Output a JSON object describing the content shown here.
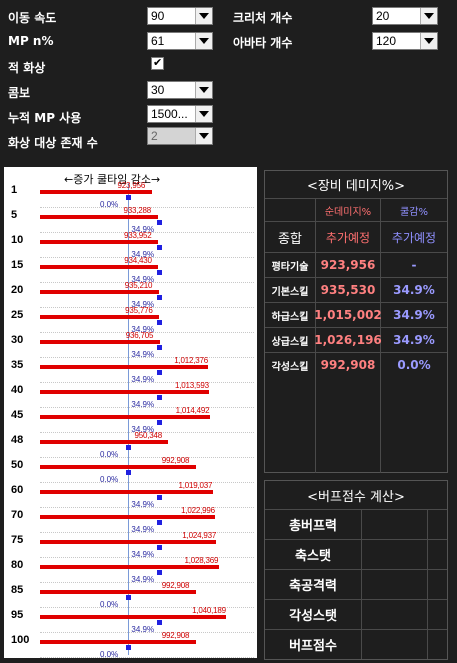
{
  "controls": {
    "move_speed": {
      "label": "이동 속도",
      "value": "90"
    },
    "creature_count": {
      "label": "크리처 개수",
      "value": "20"
    },
    "mp_n": {
      "label": "MP n%",
      "value": "61"
    },
    "avatar_count": {
      "label": "아바타 개수",
      "value": "120"
    },
    "enemy_burn": {
      "label": "적 화상",
      "checked": "✔"
    },
    "combo": {
      "label": "콤보",
      "value": "30"
    },
    "accum_mp": {
      "label": "누적 MP 사용",
      "value": "1500..."
    },
    "burn_targets": {
      "label": "화상 대상 존재 수",
      "value": "2"
    }
  },
  "chart_data": {
    "type": "bar",
    "title": "←증가 쿨타임 감소→",
    "categories": [
      "1",
      "5",
      "10",
      "15",
      "20",
      "25",
      "30",
      "35",
      "40",
      "45",
      "48",
      "50",
      "60",
      "70",
      "75",
      "80",
      "85",
      "95",
      "100"
    ],
    "series": [
      {
        "values": [
          923956,
          933288,
          933952,
          934430,
          935210,
          935776,
          936705,
          1012376,
          1013593,
          1014492,
          950348,
          992908,
          1019037,
          1022996,
          1024937,
          1028369,
          992908,
          1040189,
          992908
        ],
        "labels": [
          "923,956",
          "933,288",
          "933,952",
          "934,430",
          "935,210",
          "935,776",
          "936,705",
          "1,012,376",
          "1,013,593",
          "1,014,492",
          "950,348",
          "992,908",
          "1,019,037",
          "1,022,996",
          "1,024,937",
          "1,028,369",
          "992,908",
          "1,040,189",
          "992,908"
        ]
      },
      {
        "values": [
          0.0,
          34.9,
          34.9,
          34.9,
          34.9,
          34.9,
          34.9,
          34.9,
          34.9,
          34.9,
          0.0,
          0.0,
          34.9,
          34.9,
          34.9,
          34.9,
          0.0,
          34.9,
          0.0
        ],
        "labels": [
          "0.0%",
          "34.9%",
          "34.9%",
          "34.9%",
          "34.9%",
          "34.9%",
          "34.9%",
          "34.9%",
          "34.9%",
          "34.9%",
          "0.0%",
          "0.0%",
          "34.9%",
          "34.9%",
          "34.9%",
          "34.9%",
          "0.0%",
          "34.9%",
          "0.0%"
        ]
      }
    ]
  },
  "equip_table": {
    "title": "<장비 데미지%>",
    "col_damage": "순데미지%",
    "col_cd": "쿨감%",
    "total_label": "종합",
    "total_damage": "추가예정",
    "total_cd": "추가예정",
    "rows": [
      {
        "label": "평타기술",
        "damage": "923,956",
        "cd": "-"
      },
      {
        "label": "기본스킬",
        "damage": "935,530",
        "cd": "34.9%"
      },
      {
        "label": "하급스킬",
        "damage": "1,015,002",
        "cd": "34.9%"
      },
      {
        "label": "상급스킬",
        "damage": "1,026,196",
        "cd": "34.9%"
      },
      {
        "label": "각성스킬",
        "damage": "992,908",
        "cd": "0.0%"
      }
    ]
  },
  "buff_table": {
    "title": "<버프점수 계산>",
    "rows": [
      "총버프력",
      "축스탯",
      "축공격력",
      "각성스탯",
      "버프점수"
    ]
  }
}
